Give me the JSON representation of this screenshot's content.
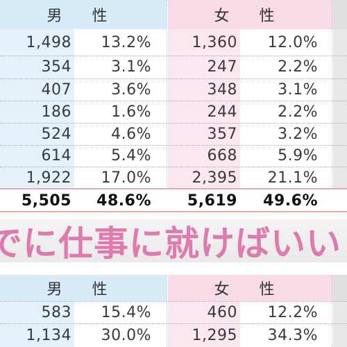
{
  "table1": {
    "header": {
      "male": "男 性",
      "female": "女 性"
    },
    "rows": [
      [
        "1,498",
        "13.2%",
        "1,360",
        "12.0%"
      ],
      [
        "354",
        "3.1%",
        "247",
        "2.2%"
      ],
      [
        "407",
        "3.6%",
        "348",
        "3.1%"
      ],
      [
        "186",
        "1.6%",
        "244",
        "2.2%"
      ],
      [
        "524",
        "4.6%",
        "357",
        "3.2%"
      ],
      [
        "614",
        "5.4%",
        "668",
        "5.9%"
      ],
      [
        "1,922",
        "17.0%",
        "2,395",
        "21.1%"
      ]
    ],
    "total": [
      "5,505",
      "48.6%",
      "5,619",
      "49.6%"
    ]
  },
  "banner": {
    "text": "でに仕事に就けばいい"
  },
  "table2": {
    "header": {
      "male": "男 性",
      "female": "女 性"
    },
    "rows": [
      [
        "583",
        "15.4%",
        "460",
        "12.2%"
      ],
      [
        "1,134",
        "30.0%",
        "1,295",
        "34.3%"
      ]
    ]
  }
}
